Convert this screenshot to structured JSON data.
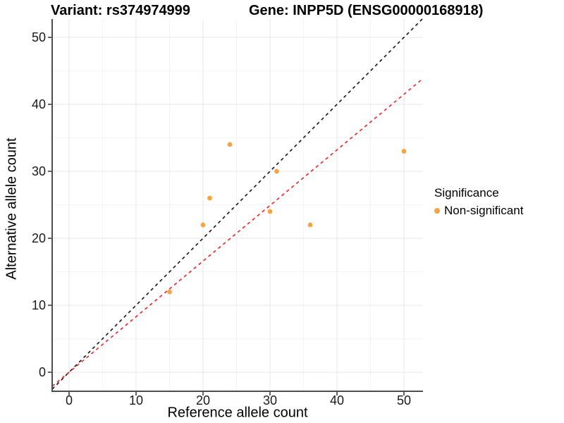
{
  "header": {
    "variant_title": "Variant: rs374974999",
    "gene_title": "Gene: INPP5D (ENSG00000168918)"
  },
  "legend": {
    "title": "Significance",
    "items": [
      {
        "label": "Non-significant",
        "color": "#F8A341"
      }
    ]
  },
  "chart_data": {
    "type": "scatter",
    "title": "Variant: rs374974999 — Gene: INPP5D (ENSG00000168918)",
    "xlabel": "Reference allele count",
    "ylabel": "Alternative allele count",
    "xlim": [
      -2.5,
      52.5
    ],
    "ylim": [
      -2.5,
      52.5
    ],
    "x_ticks": [
      0,
      10,
      20,
      30,
      40,
      50
    ],
    "y_ticks": [
      0,
      10,
      20,
      30,
      40,
      50
    ],
    "x_minor_ticks": [
      5,
      15,
      25,
      35,
      45
    ],
    "y_minor_ticks": [
      5,
      15,
      25,
      35,
      45
    ],
    "grid": "major-and-minor",
    "legend_title": "Significance",
    "legend_position": "right",
    "series": [
      {
        "name": "Non-significant",
        "color": "#F8A341",
        "points": [
          [
            15,
            12
          ],
          [
            20,
            22
          ],
          [
            21,
            26
          ],
          [
            24,
            34
          ],
          [
            30,
            24
          ],
          [
            31,
            30
          ],
          [
            36,
            22
          ],
          [
            50,
            33
          ]
        ]
      }
    ],
    "reference_lines": [
      {
        "name": "identity-line",
        "slope": 1.0,
        "intercept": 0,
        "color": "#141414",
        "dash": true
      },
      {
        "name": "allelic-ratio-line",
        "slope": 0.83,
        "intercept": 0,
        "color": "#ED2024",
        "dash": true
      }
    ]
  }
}
